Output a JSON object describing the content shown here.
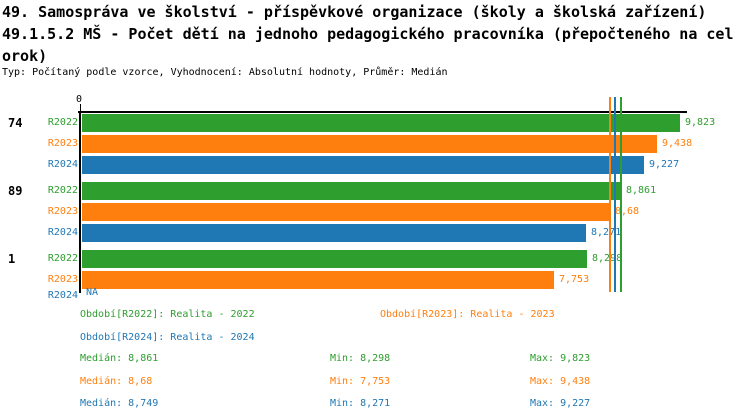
{
  "title": {
    "line1": "49. Samospráva ve školství - příspěvkové organizace (školy a školská zařízení)",
    "line2": "49.1.5.2 MŠ - Počet dětí na jednoho pedagogického pracovníka (přepočteného na cel",
    "line3": "orok)",
    "meta": "Typ: Počítaný podle vzorce, Vyhodnocení: Absolutní hodnoty, Průměr: Medián"
  },
  "colors": {
    "R2022": "#2E9E2E",
    "R2023": "#FF7F0E",
    "R2024": "#1F77B4",
    "axis": "#000000"
  },
  "chart_data": {
    "type": "bar",
    "orientation": "horizontal",
    "axis": {
      "origin_tick_label": "0",
      "x_min": 0
    },
    "na_text": "NA",
    "groups": [
      {
        "label": "74",
        "bars": [
          {
            "series": "R2022",
            "value": 9.823,
            "display": "9,823"
          },
          {
            "series": "R2023",
            "value": 9.438,
            "display": "9,438"
          },
          {
            "series": "R2024",
            "value": 9.227,
            "display": "9,227"
          }
        ]
      },
      {
        "label": "89",
        "bars": [
          {
            "series": "R2022",
            "value": 8.861,
            "display": "8,861"
          },
          {
            "series": "R2023",
            "value": 8.68,
            "display": "8,68"
          },
          {
            "series": "R2024",
            "value": 8.271,
            "display": "8,271"
          }
        ]
      },
      {
        "label": "1",
        "bars": [
          {
            "series": "R2022",
            "value": 8.298,
            "display": "8,298"
          },
          {
            "series": "R2023",
            "value": 7.753,
            "display": "7,753"
          },
          {
            "series": "R2024",
            "value": null,
            "display": "NA"
          }
        ]
      }
    ],
    "median_lines": [
      {
        "series": "R2023",
        "value": 8.68
      },
      {
        "series": "R2024",
        "value": 8.749
      },
      {
        "series": "R2022",
        "value": 8.861
      }
    ]
  },
  "legend": [
    {
      "series": "R2022",
      "text": "Období[R2022]: Realita - 2022"
    },
    {
      "series": "R2023",
      "text": "Období[R2023]: Realita - 2023"
    },
    {
      "series": "R2024",
      "text": "Období[R2024]: Realita - 2024"
    }
  ],
  "stats": [
    {
      "series": "R2022",
      "median": "Medián: 8,861",
      "min": "Min: 8,298",
      "max": "Max: 9,823"
    },
    {
      "series": "R2023",
      "median": "Medián: 8,68",
      "min": "Min: 7,753",
      "max": "Max: 9,438"
    },
    {
      "series": "R2024",
      "median": "Medián: 8,749",
      "min": "Min: 8,271",
      "max": "Max: 9,227"
    }
  ]
}
